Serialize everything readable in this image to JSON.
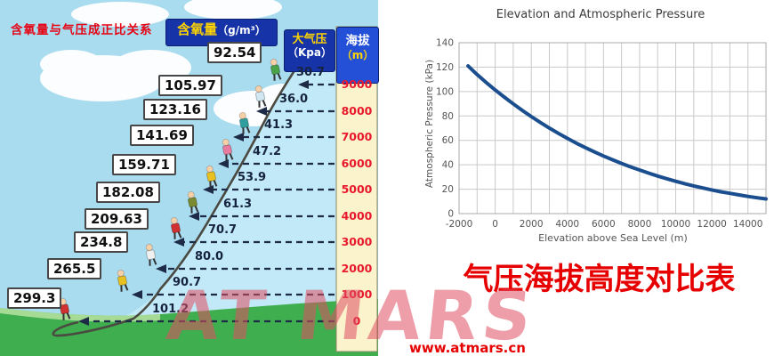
{
  "infographic": {
    "title": "含氧量与气压成正比关系",
    "headers": {
      "oxygen_label": "含氧量",
      "oxygen_unit": "（g/m³）",
      "pressure_label": "大气压",
      "pressure_unit": "（Kpa）",
      "elevation_label": "海拔",
      "elevation_unit": "（m）"
    },
    "rows": [
      {
        "elevation": "9000",
        "oxygen": "92.54",
        "pressure": "30.7"
      },
      {
        "elevation": "8000",
        "oxygen": "105.97",
        "pressure": "36.0"
      },
      {
        "elevation": "7000",
        "oxygen": "123.16",
        "pressure": "41.3"
      },
      {
        "elevation": "6000",
        "oxygen": "141.69",
        "pressure": "47.2"
      },
      {
        "elevation": "5000",
        "oxygen": "159.71",
        "pressure": "53.9"
      },
      {
        "elevation": "4000",
        "oxygen": "182.08",
        "pressure": "61.3"
      },
      {
        "elevation": "3000",
        "oxygen": "209.63",
        "pressure": "70.7"
      },
      {
        "elevation": "2000",
        "oxygen": "234.8",
        "pressure": "80.0"
      },
      {
        "elevation": "1000",
        "oxygen": "265.5",
        "pressure": "90.7"
      },
      {
        "elevation": "0",
        "oxygen": "299.3",
        "pressure": "101.2"
      }
    ]
  },
  "chart_data": {
    "type": "line",
    "title": "Elevation and Atmospheric Pressure",
    "xlabel": "Elevation above Sea Level (m)",
    "ylabel": "Atmospheric Pressure (kPa)",
    "xlim": [
      -2000,
      15000
    ],
    "ylim": [
      0,
      140
    ],
    "x_tick_step": 2000,
    "y_tick_step": 20,
    "x_grid_step": 1000,
    "y_grid_step": 20,
    "grid": true,
    "legend": false,
    "line_color": "#1b4e8e",
    "grid_color": "#c9c9c9",
    "series": [
      {
        "name": "Atmospheric Pressure",
        "points": [
          [
            -1500,
            121.0
          ],
          [
            -1000,
            113.9
          ],
          [
            -500,
            107.5
          ],
          [
            0,
            101.3
          ],
          [
            500,
            95.5
          ],
          [
            1000,
            89.9
          ],
          [
            1500,
            84.6
          ],
          [
            2000,
            79.5
          ],
          [
            2500,
            74.7
          ],
          [
            3000,
            70.1
          ],
          [
            3500,
            65.8
          ],
          [
            4000,
            61.6
          ],
          [
            4500,
            57.7
          ],
          [
            5000,
            54.0
          ],
          [
            5500,
            50.5
          ],
          [
            6000,
            47.2
          ],
          [
            6500,
            44.1
          ],
          [
            7000,
            41.1
          ],
          [
            7500,
            38.3
          ],
          [
            8000,
            35.7
          ],
          [
            8500,
            33.2
          ],
          [
            9000,
            30.8
          ],
          [
            9500,
            28.6
          ],
          [
            10000,
            26.5
          ],
          [
            10500,
            24.5
          ],
          [
            11000,
            22.7
          ],
          [
            11500,
            21.0
          ],
          [
            12000,
            19.4
          ],
          [
            12500,
            17.9
          ],
          [
            13000,
            16.6
          ],
          [
            13500,
            15.3
          ],
          [
            14000,
            14.1
          ],
          [
            14500,
            13.0
          ],
          [
            15000,
            12.0
          ]
        ]
      }
    ]
  },
  "caption": "气压海拔高度对比表",
  "watermark": {
    "text": "AT MARS",
    "url": "www.atmars.cn"
  },
  "colors": {
    "sky": "#aadcf0",
    "slope_area": "#c2e9f7",
    "grass": "#3fae4e",
    "column_bg": "#faf3cc",
    "header_blue": "#1733a8",
    "elevation_header_blue": "#2450d8",
    "red_text": "#e8192c",
    "arrow": "#1d2b47",
    "chart_line": "#1b4e8e"
  }
}
